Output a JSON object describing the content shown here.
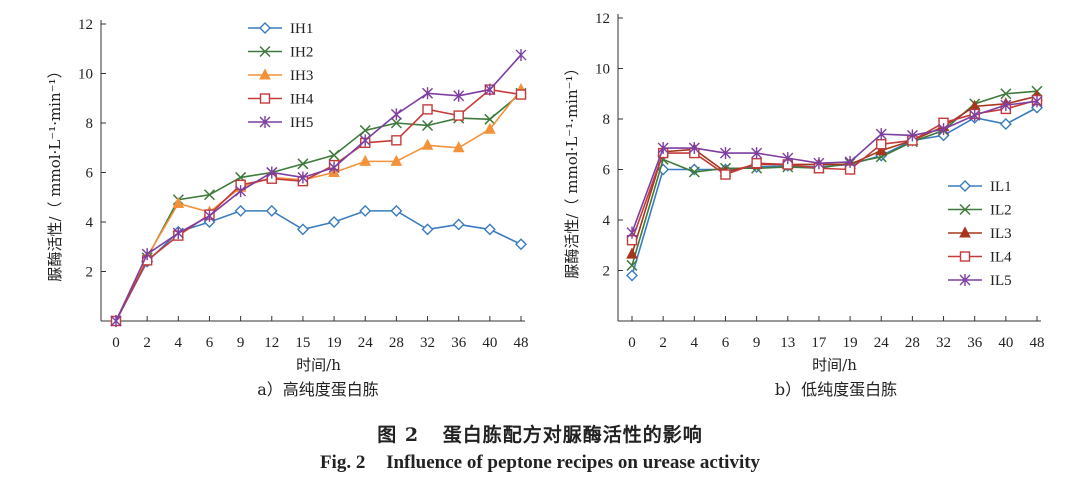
{
  "figure": {
    "caption_cn_num": "图 2",
    "caption_cn_text": "蛋白胨配方对脲酶活性的影响",
    "caption_en_num": "Fig. 2",
    "caption_en_text": "Influence of peptone recipes on urease activity"
  },
  "chart_data": [
    {
      "id": "a",
      "type": "line",
      "subtitle": "a）高纯度蛋白胨",
      "xlabel": "时间/h",
      "ylabel": "脲酶活性/（ mmol·L⁻¹·min⁻¹）",
      "categories": [
        "0",
        "2",
        "4",
        "6",
        "9",
        "12",
        "15",
        "19",
        "24",
        "28",
        "32",
        "36",
        "40",
        "48"
      ],
      "yticks": [
        2,
        4,
        6,
        8,
        10,
        12
      ],
      "ylim": [
        0,
        12
      ],
      "legend_position": "top-left",
      "series": [
        {
          "name": "IH1",
          "color": "#3a7cc1",
          "marker": "diamond",
          "values": [
            0,
            2.4,
            3.6,
            4.0,
            4.45,
            4.45,
            3.7,
            4.0,
            4.45,
            4.45,
            3.7,
            3.9,
            3.7,
            3.1
          ]
        },
        {
          "name": "IH2",
          "color": "#3f7a3c",
          "marker": "x",
          "values": [
            0,
            2.55,
            4.9,
            5.1,
            5.8,
            6.0,
            6.35,
            6.7,
            7.7,
            8.0,
            7.9,
            8.2,
            8.15,
            9.2
          ]
        },
        {
          "name": "IH3",
          "color": "#f4923b",
          "marker": "triangle",
          "values": [
            0,
            2.6,
            4.75,
            4.4,
            5.4,
            5.8,
            5.7,
            6.0,
            6.45,
            6.45,
            7.1,
            7.0,
            7.75,
            9.35
          ]
        },
        {
          "name": "IH4",
          "color": "#c43a3a",
          "marker": "square",
          "values": [
            0,
            2.45,
            3.45,
            4.3,
            5.5,
            5.75,
            5.65,
            6.3,
            7.2,
            7.3,
            8.55,
            8.3,
            9.35,
            9.15
          ]
        },
        {
          "name": "IH5",
          "color": "#7d3fa0",
          "marker": "star",
          "values": [
            0,
            2.7,
            3.55,
            4.25,
            5.25,
            6.0,
            5.8,
            6.2,
            7.3,
            8.35,
            9.2,
            9.1,
            9.35,
            10.75
          ]
        }
      ]
    },
    {
      "id": "b",
      "type": "line",
      "subtitle": "b）低纯度蛋白胨",
      "xlabel": "时间/h",
      "ylabel": "脲酶活性/（ mmol·L⁻¹·min⁻¹）",
      "categories": [
        "0",
        "2",
        "4",
        "6",
        "9",
        "13",
        "17",
        "19",
        "24",
        "28",
        "32",
        "36",
        "40",
        "48"
      ],
      "yticks": [
        2,
        4,
        6,
        8,
        10,
        12
      ],
      "ylim": [
        0,
        12
      ],
      "legend_position": "bottom-right",
      "series": [
        {
          "name": "IL1",
          "color": "#3a7cc1",
          "marker": "diamond",
          "values": [
            1.8,
            6.0,
            6.0,
            6.0,
            6.1,
            6.15,
            6.1,
            6.2,
            6.55,
            7.15,
            7.35,
            8.05,
            7.8,
            8.45
          ]
        },
        {
          "name": "IL2",
          "color": "#3f7a3c",
          "marker": "x",
          "values": [
            2.2,
            6.4,
            5.9,
            6.05,
            6.05,
            6.1,
            6.05,
            6.25,
            6.5,
            7.1,
            7.55,
            8.6,
            9.0,
            9.1
          ]
        },
        {
          "name": "IL3",
          "color": "#a6361c",
          "marker": "triangle",
          "values": [
            2.65,
            6.7,
            6.8,
            5.9,
            6.2,
            6.2,
            6.2,
            6.2,
            6.75,
            7.15,
            7.7,
            8.5,
            8.6,
            8.9
          ]
        },
        {
          "name": "IL4",
          "color": "#c43a3a",
          "marker": "square",
          "values": [
            3.2,
            6.65,
            6.65,
            5.8,
            6.25,
            6.2,
            6.05,
            6.0,
            7.0,
            7.15,
            7.85,
            8.2,
            8.4,
            8.75
          ]
        },
        {
          "name": "IL5",
          "color": "#7d3fa0",
          "marker": "star",
          "values": [
            3.5,
            6.85,
            6.85,
            6.65,
            6.65,
            6.45,
            6.25,
            6.3,
            7.4,
            7.35,
            7.6,
            8.15,
            8.55,
            8.7
          ]
        }
      ]
    }
  ]
}
